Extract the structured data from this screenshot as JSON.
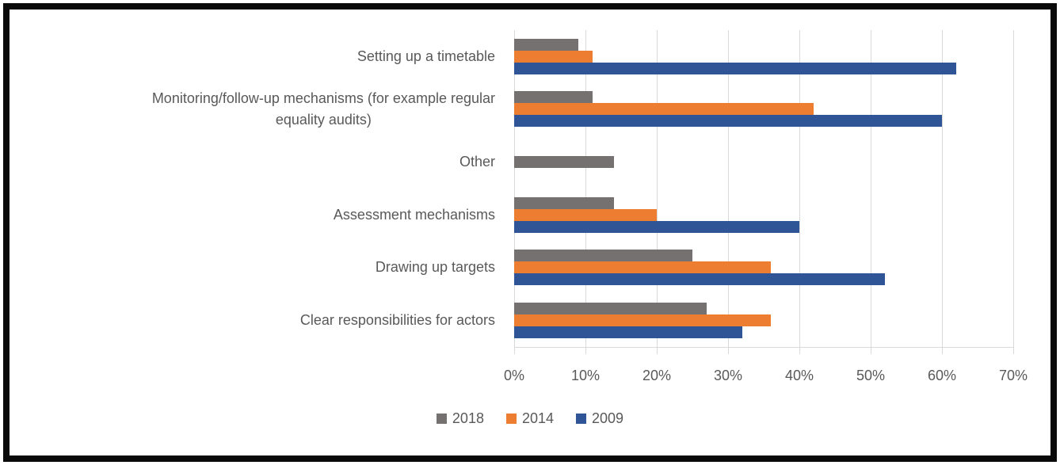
{
  "frame": {
    "border_color": "#0a0a0a",
    "background": "#ffffff"
  },
  "chart_data": {
    "type": "bar",
    "orientation": "horizontal",
    "title": "",
    "categories": [
      "Setting up a timetable",
      "Monitoring/follow-up mechanisms (for example regular\nequality audits)",
      "Other",
      "Assessment mechanisms",
      "Drawing up targets",
      "Clear responsibilities for actors"
    ],
    "series": [
      {
        "name": "2018",
        "color": "#767171",
        "values": [
          9,
          11,
          14,
          14,
          25,
          27
        ]
      },
      {
        "name": "2014",
        "color": "#ED7D31",
        "values": [
          11,
          42,
          0,
          20,
          36,
          36
        ]
      },
      {
        "name": "2009",
        "color": "#2F5597",
        "values": [
          62,
          60,
          0,
          40,
          52,
          32
        ]
      }
    ],
    "xlim": [
      0,
      70
    ],
    "x_tick_labels": [
      "0%",
      "10%",
      "20%",
      "30%",
      "40%",
      "50%",
      "60%",
      "70%"
    ],
    "gridlines": true,
    "legend_position": "bottom",
    "gridline_color": "#d9d9d9",
    "text_color": "#595959"
  }
}
